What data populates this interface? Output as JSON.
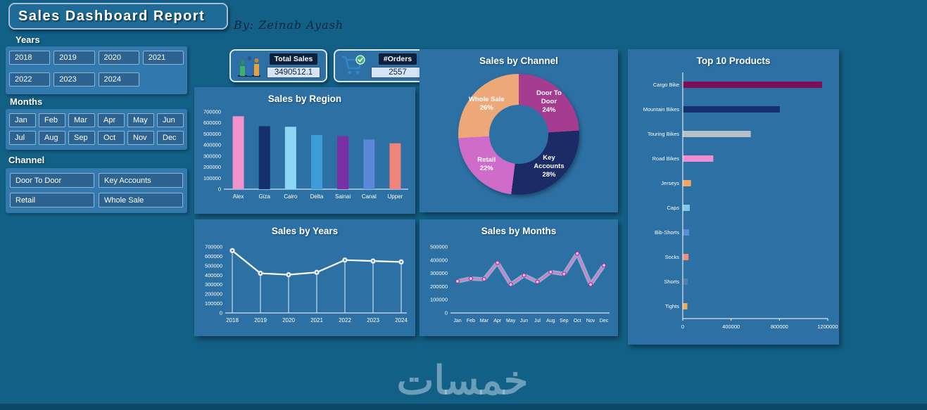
{
  "app": {
    "title": "Sales Dashboard Report",
    "byline": "By: Zeinab Ayash",
    "watermark": "خمسات"
  },
  "slicers": {
    "years": {
      "label": "Years",
      "items": [
        "2018",
        "2019",
        "2020",
        "2021",
        "2022",
        "2023",
        "2024"
      ]
    },
    "months": {
      "label": "Months",
      "items": [
        "Jan",
        "Feb",
        "Mar",
        "Apr",
        "May",
        "Jun",
        "Jul",
        "Aug",
        "Sep",
        "Oct",
        "Nov",
        "Dec"
      ]
    },
    "channel": {
      "label": "Channel",
      "items": [
        "Door To Door",
        "Key Accounts",
        "Retail",
        "Whole Sale"
      ]
    }
  },
  "kpis": [
    {
      "label": "Total Sales",
      "value": "3490512.1",
      "icon": "sales-chart-icon"
    },
    {
      "label": "#Orders",
      "value": "2557",
      "icon": "shopping-cart-icon"
    }
  ],
  "chart_data": [
    {
      "id": "region",
      "type": "bar",
      "title": "Sales by Region",
      "categories": [
        "Alex",
        "Giza",
        "Cairo",
        "Delta",
        "Sainai",
        "Canal",
        "Upper"
      ],
      "values": [
        660000,
        570000,
        565000,
        490000,
        480000,
        450000,
        415000
      ],
      "colors": [
        "#f193cb",
        "#14306d",
        "#8bd7f4",
        "#3d9bd5",
        "#7a2fa5",
        "#5c88d8",
        "#f0837a"
      ],
      "ylim": [
        0,
        700000
      ],
      "ytick": 100000,
      "xlabel": "",
      "ylabel": "",
      "grid": false,
      "legend": "none"
    },
    {
      "id": "channel",
      "type": "pie",
      "title": "Sales by Channel",
      "segments": [
        {
          "label": "Door To Door",
          "pct": 24,
          "color": "#a53c8f"
        },
        {
          "label": "Key Accounts",
          "pct": 28,
          "color": "#1b2b66"
        },
        {
          "label": "Retail",
          "pct": 22,
          "color": "#cf6cc9"
        },
        {
          "label": "Whole Sale",
          "pct": 26,
          "color": "#eda87a"
        }
      ],
      "donut": true,
      "legend": "inside"
    },
    {
      "id": "years",
      "type": "line",
      "title": "Sales by Years",
      "categories": [
        "2018",
        "2019",
        "2020",
        "2021",
        "2022",
        "2023",
        "2024"
      ],
      "values": [
        660000,
        420000,
        405000,
        430000,
        560000,
        550000,
        540000
      ],
      "line_color": "#ffffff",
      "drop_lines": true,
      "ylim": [
        0,
        700000
      ],
      "ytick": 100000,
      "grid": false,
      "legend": "none"
    },
    {
      "id": "months",
      "type": "line",
      "title": "Sales by Months",
      "categories": [
        "Jan",
        "Feb",
        "Mar",
        "Apr",
        "May",
        "Jun",
        "Jul",
        "Aug",
        "Sep",
        "Oct",
        "Nov",
        "Dec"
      ],
      "values": [
        240000,
        260000,
        255000,
        380000,
        215000,
        285000,
        235000,
        310000,
        295000,
        450000,
        215000,
        360000
      ],
      "line_color": "#e272cc",
      "glow": true,
      "ylim": [
        0,
        500000
      ],
      "ytick": 100000,
      "grid": false,
      "legend": "none"
    },
    {
      "id": "products",
      "type": "bar",
      "orientation": "horizontal",
      "title": "Top 10 Products",
      "categories": [
        "Cargo Bike",
        "Mountain Bikes",
        "Touring Bikes",
        "Road Bikes",
        "Jerseys",
        "Caps",
        "Bib-Shorts",
        "Socks",
        "Shorts",
        "Tights"
      ],
      "values": [
        1150000,
        800000,
        560000,
        250000,
        65000,
        55000,
        50000,
        45000,
        40000,
        35000
      ],
      "colors": [
        "#7a0f57",
        "#152f6e",
        "#b7c0c6",
        "#ef8ed2",
        "#f2a763",
        "#85c6ec",
        "#5d8bd8",
        "#f08b7e",
        "#4d7fae",
        "#f2a957"
      ],
      "xlim": [
        0,
        1200000
      ],
      "xticks": [
        0,
        400000,
        800000,
        1200000
      ],
      "grid": false,
      "legend": "none"
    }
  ]
}
